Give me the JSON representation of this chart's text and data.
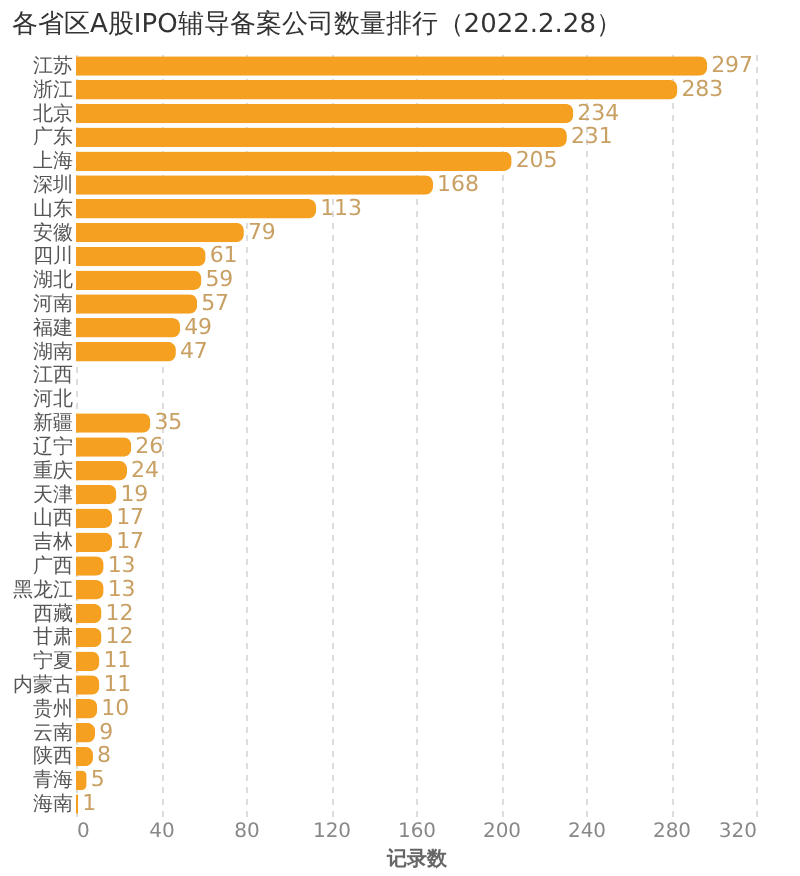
{
  "chart_data": {
    "type": "bar",
    "orientation": "horizontal",
    "title": "各省区A股IPO辅导备案公司数量排行（2022.2.28）",
    "xlabel": "记录数",
    "categories": [
      "江苏",
      "浙江",
      "北京",
      "广东",
      "上海",
      "深圳",
      "山东",
      "安徽",
      "四川",
      "湖北",
      "河南",
      "福建",
      "湖南",
      "江西",
      "河北",
      "新疆",
      "辽宁",
      "重庆",
      "天津",
      "山西",
      "吉林",
      "广西",
      "黑龙江",
      "西藏",
      "甘肃",
      "宁夏",
      "内蒙古",
      "贵州",
      "云南",
      "陕西",
      "青海",
      "海南"
    ],
    "values": [
      297,
      283,
      234,
      231,
      205,
      168,
      113,
      79,
      61,
      59,
      57,
      49,
      47,
      null,
      null,
      35,
      26,
      24,
      19,
      17,
      17,
      13,
      13,
      12,
      12,
      11,
      11,
      10,
      9,
      8,
      5,
      1
    ],
    "color": "#f5a020",
    "xlim": [
      0,
      320
    ],
    "xticks": [
      0,
      40,
      80,
      120,
      160,
      200,
      240,
      280,
      320
    ],
    "grid": "x",
    "data_labels": true
  }
}
